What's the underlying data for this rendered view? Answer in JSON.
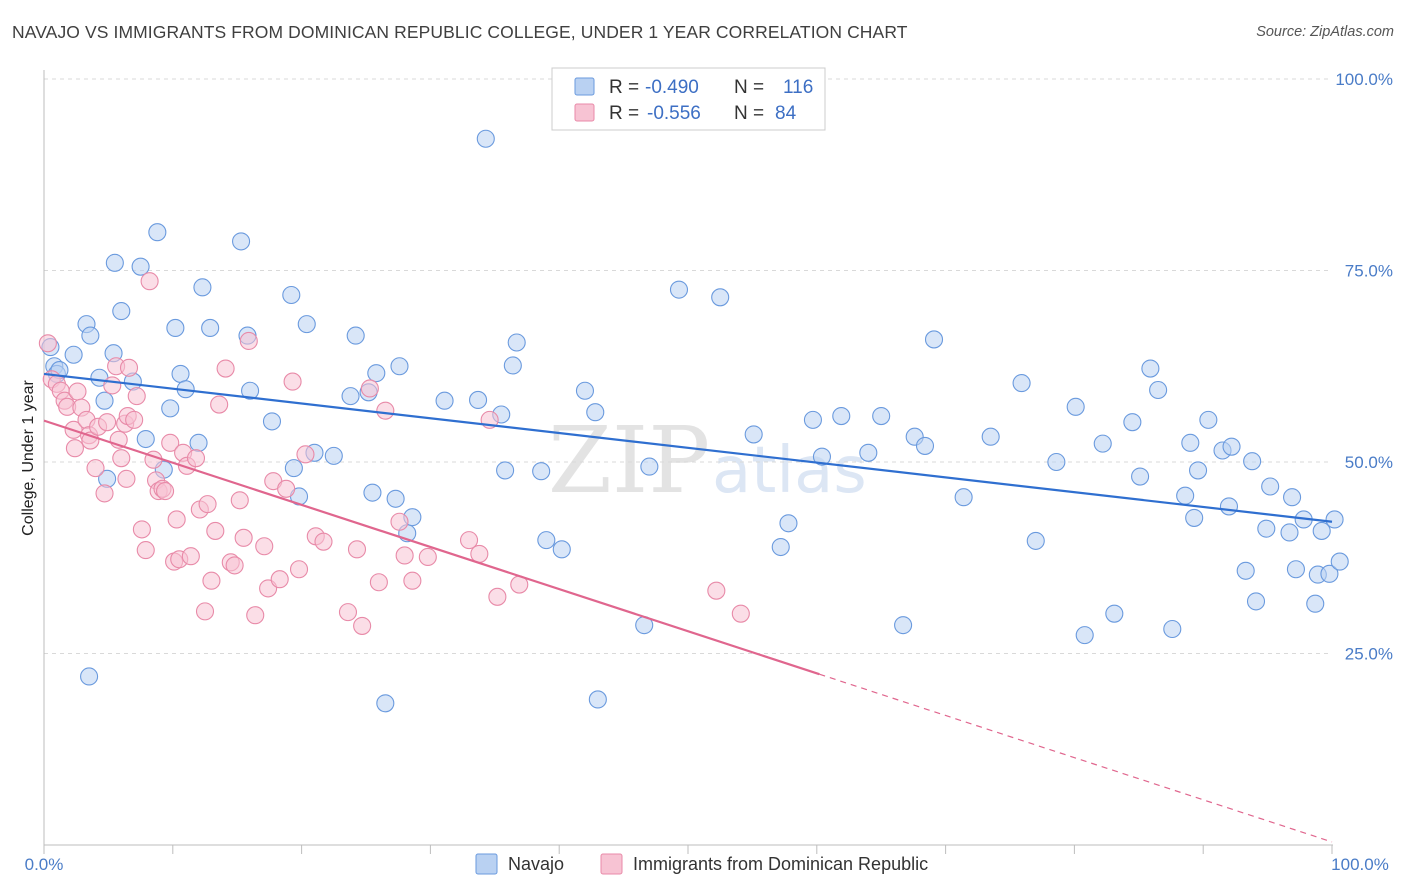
{
  "header": {
    "title": "NAVAJO VS IMMIGRANTS FROM DOMINICAN REPUBLIC COLLEGE, UNDER 1 YEAR CORRELATION CHART",
    "source": "Source: ZipAtlas.com"
  },
  "watermark": {
    "zip": "ZIP",
    "atlas": "atlas"
  },
  "legend_top": {
    "rows": [
      {
        "r_label": "R =",
        "r_value": "-0.490",
        "n_label": "N =",
        "n_value": "116"
      },
      {
        "r_label": "R =",
        "r_value": "-0.556",
        "n_label": "N =",
        "n_value": "84"
      }
    ]
  },
  "colors": {
    "navajo_fill": "#b9d1f2",
    "navajo_stroke": "#6a9ade",
    "navajo_line": "#2f6fd0",
    "dominican_fill": "#f7c3d3",
    "dominican_stroke": "#e88aa8",
    "dominican_line": "#e0668e",
    "grid": "#d9d9d9",
    "tick_text": "#4a7cc7"
  },
  "chart_data": {
    "type": "scatter",
    "title": "NAVAJO VS IMMIGRANTS FROM DOMINICAN REPUBLIC COLLEGE, UNDER 1 YEAR CORRELATION CHART",
    "xlabel": "",
    "ylabel": "College, Under 1 year",
    "xlim": [
      0,
      100
    ],
    "ylim": [
      0,
      100
    ],
    "x_tick_labels": [
      "0.0%",
      "100.0%"
    ],
    "y_ticks": [
      25,
      50,
      75,
      100
    ],
    "y_tick_labels": [
      "25.0%",
      "50.0%",
      "75.0%",
      "100.0%"
    ],
    "grid": true,
    "legend_position": "top-center",
    "series": [
      {
        "name": "Navajo",
        "r": -0.49,
        "n": 116,
        "trend": {
          "x": [
            0,
            100
          ],
          "y": [
            61.5,
            42.2
          ]
        },
        "points": [
          [
            0.5,
            65
          ],
          [
            0.8,
            62.5
          ],
          [
            1,
            61.5
          ],
          [
            1.2,
            62
          ],
          [
            2.3,
            64
          ],
          [
            3.3,
            68
          ],
          [
            3.6,
            66.5
          ],
          [
            4.3,
            61
          ],
          [
            4.7,
            58
          ],
          [
            4.9,
            47.8
          ],
          [
            5.5,
            76
          ],
          [
            5.4,
            64.2
          ],
          [
            6,
            69.7
          ],
          [
            6.9,
            60.5
          ],
          [
            7.5,
            75.5
          ],
          [
            7.9,
            53
          ],
          [
            8.8,
            80
          ],
          [
            9.3,
            49
          ],
          [
            9.8,
            57
          ],
          [
            10.2,
            67.5
          ],
          [
            10.6,
            61.5
          ],
          [
            11,
            59.5
          ],
          [
            12,
            52.5
          ],
          [
            12.3,
            72.8
          ],
          [
            12.9,
            67.5
          ],
          [
            15.3,
            78.8
          ],
          [
            15.8,
            66.5
          ],
          [
            16,
            59.3
          ],
          [
            17.7,
            55.3
          ],
          [
            19.2,
            71.8
          ],
          [
            19.4,
            49.2
          ],
          [
            19.8,
            45.5
          ],
          [
            20.4,
            68
          ],
          [
            21,
            51.2
          ],
          [
            22.5,
            50.8
          ],
          [
            23.8,
            58.6
          ],
          [
            24.2,
            66.5
          ],
          [
            25.2,
            59.1
          ],
          [
            25.5,
            46
          ],
          [
            25.8,
            61.6
          ],
          [
            27.3,
            45.2
          ],
          [
            27.6,
            62.5
          ],
          [
            28.2,
            40.7
          ],
          [
            28.6,
            42.8
          ],
          [
            31.1,
            58
          ],
          [
            33.7,
            58.1
          ],
          [
            34.3,
            92.2
          ],
          [
            35.5,
            56.2
          ],
          [
            35.8,
            48.9
          ],
          [
            36.4,
            62.6
          ],
          [
            36.7,
            65.6
          ],
          [
            38.6,
            48.8
          ],
          [
            39,
            39.8
          ],
          [
            40.2,
            38.6
          ],
          [
            42,
            59.3
          ],
          [
            42.8,
            56.5
          ],
          [
            46.6,
            28.7
          ],
          [
            47,
            49.4
          ],
          [
            49.3,
            72.5
          ],
          [
            52.5,
            71.5
          ],
          [
            55.1,
            53.6
          ],
          [
            57.2,
            38.9
          ],
          [
            57.8,
            42
          ],
          [
            59.7,
            55.5
          ],
          [
            60.4,
            50.7
          ],
          [
            61.9,
            56
          ],
          [
            64,
            51.2
          ],
          [
            65,
            56
          ],
          [
            66.7,
            28.7
          ],
          [
            67.6,
            53.3
          ],
          [
            68.4,
            52.1
          ],
          [
            69.1,
            66
          ],
          [
            71.4,
            45.4
          ],
          [
            73.5,
            53.3
          ],
          [
            75.9,
            60.3
          ],
          [
            77,
            39.7
          ],
          [
            78.6,
            50
          ],
          [
            80.1,
            57.2
          ],
          [
            80.8,
            27.4
          ],
          [
            82.2,
            52.4
          ],
          [
            83.1,
            30.2
          ],
          [
            84.5,
            55.2
          ],
          [
            85.1,
            48.1
          ],
          [
            85.9,
            62.2
          ],
          [
            86.5,
            59.4
          ],
          [
            87.6,
            28.2
          ],
          [
            88.6,
            45.6
          ],
          [
            89,
            52.5
          ],
          [
            89.3,
            42.7
          ],
          [
            89.6,
            48.9
          ],
          [
            90.4,
            55.5
          ],
          [
            91.5,
            51.5
          ],
          [
            92,
            44.2
          ],
          [
            92.2,
            52
          ],
          [
            93.3,
            35.8
          ],
          [
            93.8,
            50.1
          ],
          [
            94.1,
            31.8
          ],
          [
            94.9,
            41.3
          ],
          [
            95.2,
            46.8
          ],
          [
            96.7,
            40.8
          ],
          [
            96.9,
            45.4
          ],
          [
            97.2,
            36
          ],
          [
            97.8,
            42.5
          ],
          [
            98.7,
            31.5
          ],
          [
            98.9,
            35.3
          ],
          [
            99.2,
            41
          ],
          [
            99.8,
            35.4
          ],
          [
            100.2,
            42.5
          ],
          [
            100.6,
            37
          ],
          [
            3.5,
            22
          ],
          [
            26.5,
            18.5
          ],
          [
            43,
            19
          ]
        ]
      },
      {
        "name": "Immigrants from Dominican Republic",
        "r": -0.556,
        "n": 84,
        "trend": {
          "x": [
            0,
            60.2
          ],
          "y": [
            55.4,
            22.3
          ],
          "dashed_to": {
            "x": 100,
            "y": 0.4
          }
        },
        "points": [
          [
            0.3,
            65.5
          ],
          [
            0.6,
            60.8
          ],
          [
            1,
            60.2
          ],
          [
            1.3,
            59.3
          ],
          [
            1.6,
            58
          ],
          [
            1.8,
            57.2
          ],
          [
            2.3,
            54.2
          ],
          [
            2.4,
            51.8
          ],
          [
            2.6,
            59.2
          ],
          [
            2.9,
            57.1
          ],
          [
            3.3,
            55.5
          ],
          [
            3.5,
            53.5
          ],
          [
            3.6,
            52.8
          ],
          [
            4,
            49.2
          ],
          [
            4.2,
            54.6
          ],
          [
            4.7,
            45.9
          ],
          [
            4.9,
            55.2
          ],
          [
            5.3,
            60
          ],
          [
            5.6,
            62.5
          ],
          [
            5.8,
            52.9
          ],
          [
            6,
            50.5
          ],
          [
            6.3,
            55
          ],
          [
            6.4,
            47.8
          ],
          [
            6.5,
            56
          ],
          [
            6.6,
            62.3
          ],
          [
            7,
            55.5
          ],
          [
            7.2,
            58.6
          ],
          [
            7.6,
            41.2
          ],
          [
            7.9,
            38.5
          ],
          [
            8.2,
            73.6
          ],
          [
            8.5,
            50.3
          ],
          [
            8.7,
            47.6
          ],
          [
            8.9,
            46.2
          ],
          [
            9.2,
            46.5
          ],
          [
            9.4,
            46.2
          ],
          [
            9.8,
            52.5
          ],
          [
            10.1,
            37
          ],
          [
            10.3,
            42.5
          ],
          [
            10.5,
            37.3
          ],
          [
            10.8,
            51.2
          ],
          [
            11.1,
            49.5
          ],
          [
            11.4,
            37.7
          ],
          [
            11.8,
            50.5
          ],
          [
            12.1,
            43.8
          ],
          [
            12.5,
            30.5
          ],
          [
            12.7,
            44.5
          ],
          [
            13,
            34.5
          ],
          [
            13.3,
            41
          ],
          [
            13.6,
            57.5
          ],
          [
            14.1,
            62.2
          ],
          [
            14.5,
            36.9
          ],
          [
            14.8,
            36.5
          ],
          [
            15.2,
            45
          ],
          [
            15.5,
            40.1
          ],
          [
            15.9,
            65.8
          ],
          [
            16.4,
            30
          ],
          [
            17.1,
            39
          ],
          [
            17.4,
            33.5
          ],
          [
            17.8,
            47.5
          ],
          [
            18.3,
            34.7
          ],
          [
            18.8,
            46.5
          ],
          [
            19.3,
            60.5
          ],
          [
            19.8,
            36
          ],
          [
            20.3,
            51
          ],
          [
            21.1,
            40.3
          ],
          [
            21.7,
            39.6
          ],
          [
            23.6,
            30.4
          ],
          [
            24.3,
            38.6
          ],
          [
            24.7,
            28.6
          ],
          [
            25.3,
            59.6
          ],
          [
            26,
            34.3
          ],
          [
            26.5,
            56.7
          ],
          [
            27.6,
            42.2
          ],
          [
            28,
            37.8
          ],
          [
            28.6,
            34.5
          ],
          [
            29.8,
            37.6
          ],
          [
            33,
            39.8
          ],
          [
            33.8,
            38
          ],
          [
            34.6,
            55.5
          ],
          [
            35.2,
            32.4
          ],
          [
            36.9,
            34
          ],
          [
            52.2,
            33.2
          ],
          [
            54.1,
            30.2
          ]
        ]
      }
    ]
  },
  "legend_bottom": {
    "items": [
      "Navajo",
      "Immigrants from Dominican Republic"
    ]
  }
}
